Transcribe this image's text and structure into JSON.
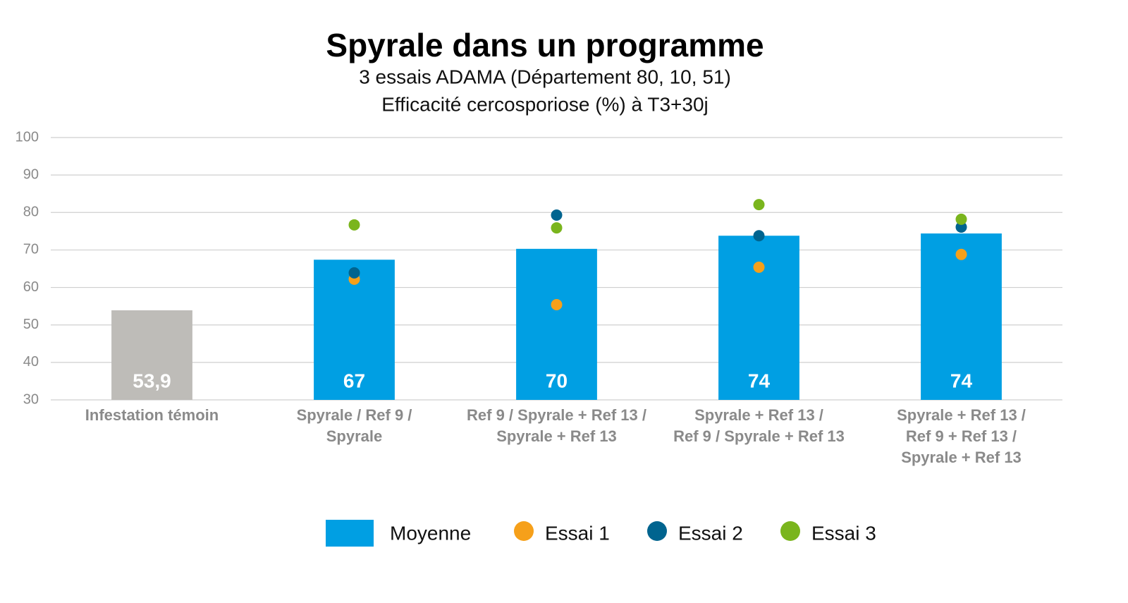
{
  "chart_data": {
    "type": "bar",
    "title": "Spyrale dans un programme",
    "subtitle": [
      "3 essais ADAMA  (Département 80, 10, 51)",
      "Efficacité cercosporiose (%) à T3+30j"
    ],
    "categories": [
      [
        "Infestation témoin"
      ],
      [
        "Spyrale / Ref 9 /",
        "Spyrale"
      ],
      [
        "Ref 9 / Spyrale + Ref 13 /",
        "Spyrale + Ref 13"
      ],
      [
        "Spyrale + Ref 13 /",
        "Ref 9 / Spyrale + Ref 13"
      ],
      [
        "Spyrale +  Ref 13 /",
        "Ref 9 + Ref 13 /",
        "Spyrale + Ref 13"
      ]
    ],
    "series": [
      {
        "name": "Moyenne",
        "type": "bar",
        "color": "#009fe3",
        "colors": [
          "#bebcb8",
          "#009fe3",
          "#009fe3",
          "#009fe3",
          "#009fe3"
        ],
        "values": [
          53.9,
          67.4,
          70.3,
          73.8,
          74.4
        ],
        "value_labels": [
          "53,9",
          "67",
          "70",
          "74",
          "74"
        ]
      },
      {
        "name": "Essai 1",
        "type": "scatter",
        "color": "#f6a01a",
        "values": [
          null,
          62.2,
          55.4,
          65.4,
          68.8
        ]
      },
      {
        "name": "Essai 2",
        "type": "scatter",
        "color": "#00648f",
        "values": [
          null,
          63.9,
          79.3,
          73.8,
          76.1
        ]
      },
      {
        "name": "Essai 3",
        "type": "scatter",
        "color": "#7ab51d",
        "values": [
          null,
          76.7,
          75.9,
          82.1,
          78.2
        ]
      }
    ],
    "ylim": [
      30,
      100
    ],
    "yticks": [
      30,
      40,
      50,
      60,
      70,
      80,
      90,
      100
    ],
    "grid": true
  }
}
